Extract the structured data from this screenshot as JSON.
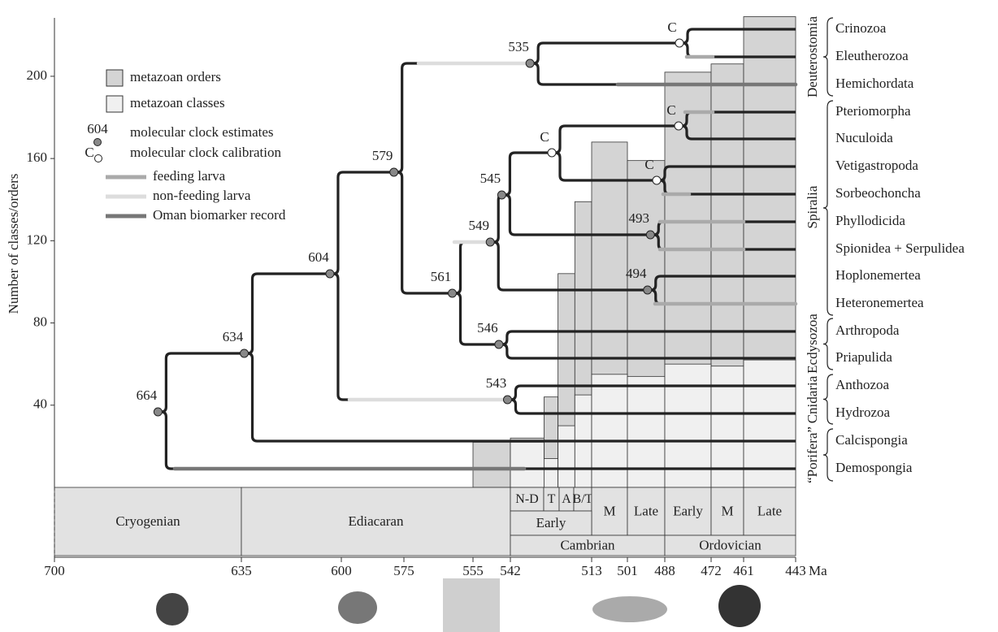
{
  "chart_data": {
    "type": "histogram",
    "ylabel": "Number of classes/orders",
    "xunit": "Ma",
    "bins": [
      555,
      542,
      530,
      525,
      519,
      513,
      501,
      488,
      472,
      461,
      443
    ],
    "series": [
      {
        "name": "metazoan orders",
        "color": "#d4d4d4",
        "values": [
          22,
          24,
          44,
          104,
          139,
          168,
          159,
          202,
          206,
          229
        ]
      },
      {
        "name": "metazoan classes",
        "color": "#f0f0f0",
        "values": [
          0,
          22,
          14,
          30,
          45,
          55,
          54,
          60,
          59,
          62
        ]
      }
    ],
    "xlim": [
      700,
      443
    ],
    "xticks": [
      700,
      635,
      600,
      575,
      555,
      542,
      513,
      501,
      488,
      472,
      461,
      443
    ],
    "ylim": [
      0,
      230
    ],
    "yticks": [
      40,
      80,
      120,
      160,
      200
    ],
    "tree_color": "#222222",
    "nodes": [
      664,
      634,
      604,
      579,
      561,
      549,
      546,
      545,
      543,
      535,
      494,
      493
    ],
    "legend": {
      "estimate_label": "604",
      "estimate": "molecular clock estimates",
      "calibration_label": "C",
      "calibration": "molecular clock calibration",
      "lines": [
        {
          "name": "feeding larva",
          "color": "#aaaaaa"
        },
        {
          "name": "non-feeding larva",
          "color": "#dddddd"
        },
        {
          "name": "Oman biomarker record",
          "color": "#777777"
        }
      ]
    },
    "taxa": [
      "Crinozoa",
      "Eleutherozoa",
      "Hemichordata",
      "Pteriomorpha",
      "Nuculoida",
      "Vetigastropoda",
      "Sorbeochoncha",
      "Phyllodicida",
      "Spionidea + Serpulidea",
      "Hoplonemertea",
      "Heteronemertea",
      "Arthropoda",
      "Priapulida",
      "Anthozoa",
      "Hydrozoa",
      "Calcispongia",
      "Demospongia"
    ],
    "clades": [
      "Deuterostomia",
      "Spiralia",
      "Ecdysozoa",
      "Cnidaria",
      "“Porifera”"
    ],
    "periods": {
      "stages": [
        "N-D",
        "T",
        "A",
        "B/T",
        "M",
        "Late",
        "Early",
        "M",
        "Late"
      ],
      "epochs": [
        "Early"
      ],
      "systems": [
        "Cryogenian",
        "Ediacaran",
        "Cambrian",
        "Ordovician"
      ]
    }
  }
}
